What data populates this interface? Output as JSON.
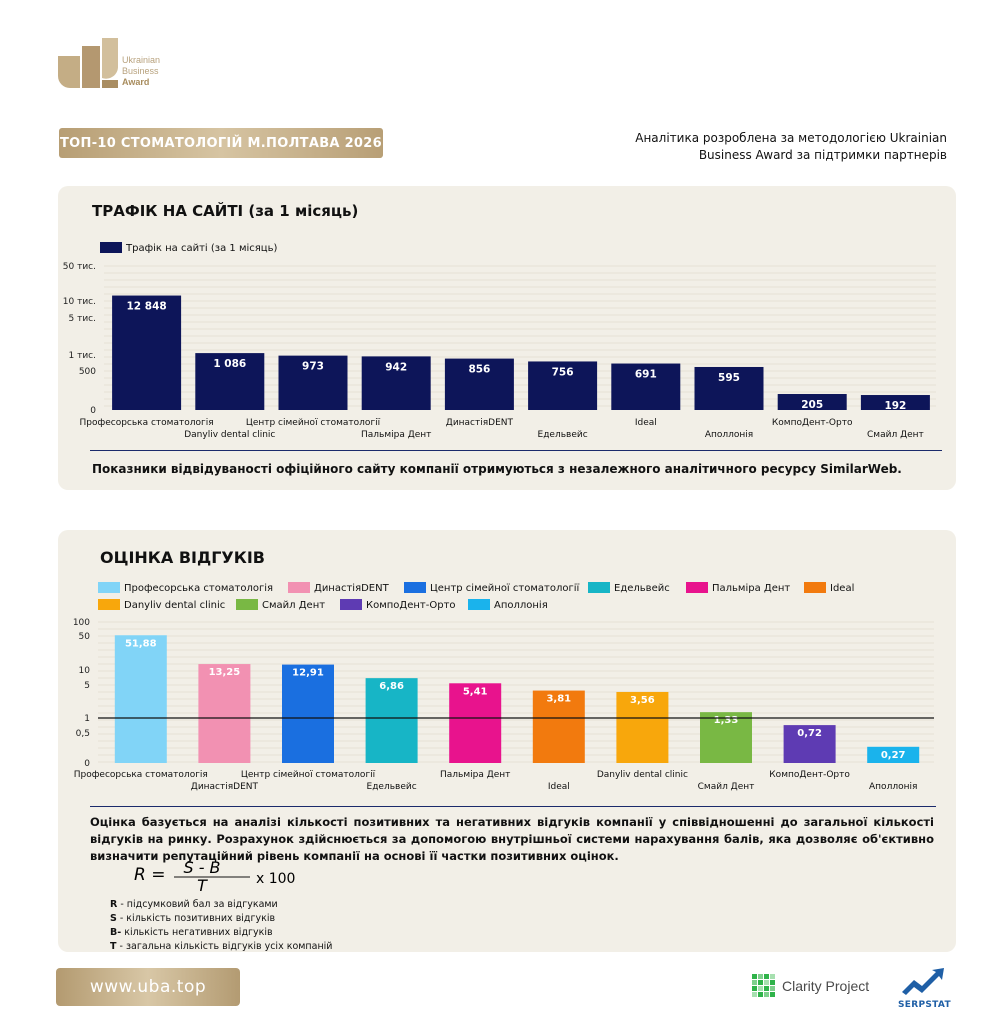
{
  "brand": {
    "line1": "Ukrainian",
    "line2": "Business",
    "line3": "Award"
  },
  "header": {
    "title": "ТОП-10 СТОМАТОЛОГІЙ М.ПОЛТАВА 2026",
    "note_line1": "Аналітика розроблена за методологією Ukrainian",
    "note_line2": "Business Award за підтримки партнерів"
  },
  "traffic": {
    "title": "ТРАФІК НА САЙТІ (за 1 місяць)",
    "source_note": "Показники відвідуваності офіційного сайту компанії отримуються з незалежного аналітичного ресурсу SimilarWeb."
  },
  "reviews": {
    "title": "ОЦІНКА ВІДГУКІВ",
    "paragraph": "Оцінка базується на аналізі кількості позитивних та негативних відгуків компанії у співвідношенні до загальної кількості відгуків на ринку. Розрахунок здійснюється за допомогою внутрішньої системи нарахування балів, яка дозволяє об'єктивно визначити репутаційний рівень компанії на основі її частки позитивних оцінок.",
    "formula": {
      "lhs": "R =",
      "numerator": "S - B",
      "denominator": "T",
      "mult": "x 100"
    },
    "definitions": [
      {
        "key": "R",
        "text": " - підсумковий бал за відгуками"
      },
      {
        "key": "S",
        "text": " - кількість позитивних відгуків"
      },
      {
        "key": "B-",
        "text": " кількість негативних відгуків"
      },
      {
        "key": "T",
        "text": " - загальна кількість відгуків усіх компаній"
      }
    ]
  },
  "footer": {
    "site": "www.uba.top",
    "partner1": "Clarity Project",
    "partner2": "SERPSTAT"
  },
  "chart_data": [
    {
      "type": "bar",
      "title": "",
      "legend": [
        "Трафік на сайті (за 1 місяць)"
      ],
      "series": [
        {
          "name": "Трафік на сайті (за 1 місяць)",
          "values": [
            12848,
            1086,
            973,
            942,
            856,
            756,
            691,
            595,
            205,
            192
          ],
          "color": "#0d1559"
        }
      ],
      "categories": [
        "Професорська стоматологія",
        "Danyliv dental clinic",
        "Центр сімейної стоматології",
        "Пальміра Дент",
        "ДинастіяDENT",
        "Едельвейс",
        "Ideal",
        "Аполлонія",
        "КомпоДент-Орто",
        "Смайл Дент"
      ],
      "data_labels": [
        "12 848",
        "1 086",
        "973",
        "942",
        "856",
        "756",
        "691",
        "595",
        "205",
        "192"
      ],
      "y_ticks": [
        {
          "label": "50 тис.",
          "value": 50000
        },
        {
          "label": "10 тис.",
          "value": 10000
        },
        {
          "label": "5 тис.",
          "value": 5000
        },
        {
          "label": "1 тис.",
          "value": 1000
        },
        {
          "label": "500",
          "value": 500
        },
        {
          "label": "0",
          "value": 0
        }
      ],
      "scale": "log",
      "grid": true,
      "legend_position": "top-left"
    },
    {
      "type": "bar",
      "title": "",
      "categories": [
        "Професорська стоматологія",
        "ДинастіяDENT",
        "Центр сімейної стоматології",
        "Едельвейс",
        "Пальміра Дент",
        "Ideal",
        "Danyliv dental clinic",
        "Смайл Дент",
        "КомпоДент-Орто",
        "Аполлонія"
      ],
      "values": [
        51.88,
        13.25,
        12.91,
        6.86,
        5.41,
        3.81,
        3.56,
        1.33,
        0.72,
        0.27
      ],
      "data_labels": [
        "51,88",
        "13,25",
        "12,91",
        "6,86",
        "5,41",
        "3,81",
        "3,56",
        "1,33",
        "0,72",
        "0,27"
      ],
      "colors": [
        "#81d4f7",
        "#f291b2",
        "#1a6fe0",
        "#17b5c6",
        "#e8138d",
        "#f27a0e",
        "#f8a70c",
        "#79b844",
        "#5e3bb3",
        "#1ab3ec"
      ],
      "legend": [
        {
          "label": "Професорська стоматологія",
          "color": "#81d4f7"
        },
        {
          "label": "ДинастіяDENT",
          "color": "#f291b2"
        },
        {
          "label": "Центр сімейної стоматології",
          "color": "#1a6fe0"
        },
        {
          "label": "Едельвейс",
          "color": "#17b5c6"
        },
        {
          "label": "Пальміра Дент",
          "color": "#e8138d"
        },
        {
          "label": "Ideal",
          "color": "#f27a0e"
        },
        {
          "label": "Danyliv dental clinic",
          "color": "#f8a70c"
        },
        {
          "label": "Смайл Дент",
          "color": "#79b844"
        },
        {
          "label": "КомпоДент-Орто",
          "color": "#5e3bb3"
        },
        {
          "label": "Аполлонія",
          "color": "#1ab3ec"
        }
      ],
      "y_ticks": [
        {
          "label": "100",
          "value": 100
        },
        {
          "label": "50",
          "value": 50
        },
        {
          "label": "10",
          "value": 10
        },
        {
          "label": "5",
          "value": 5
        },
        {
          "label": "1",
          "value": 1
        },
        {
          "label": "0,5",
          "value": 0.5
        },
        {
          "label": "0",
          "value": 0
        }
      ],
      "scale": "log",
      "reference_line": 1,
      "grid": true,
      "legend_position": "top"
    }
  ]
}
